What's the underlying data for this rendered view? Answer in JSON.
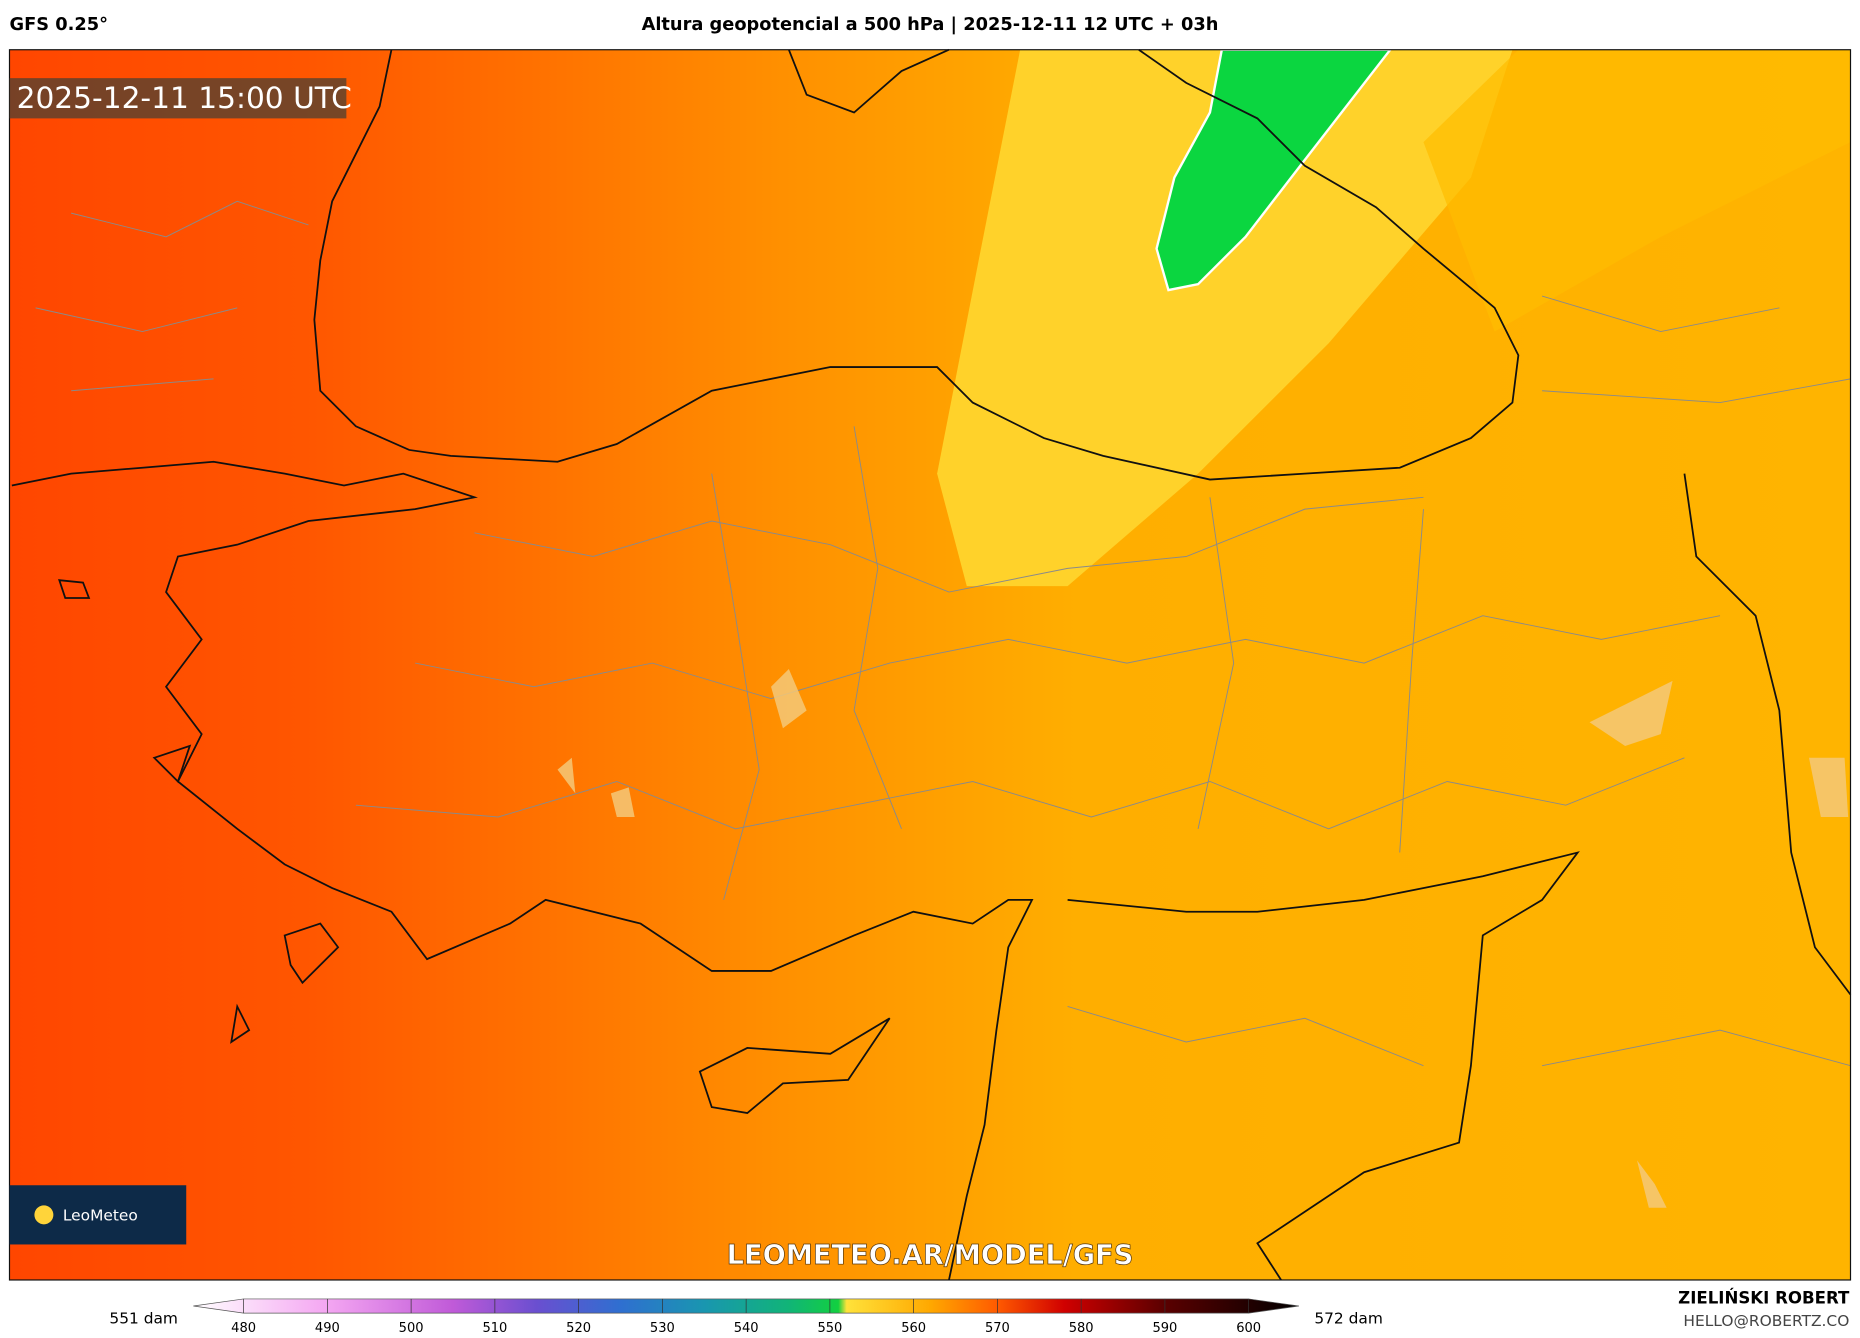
{
  "header": {
    "model": "GFS 0.25°",
    "title": "Altura geopotencial a 500 hPa | 2025-12-11 12 UTC + 03h"
  },
  "map": {
    "timestamp": "2025-12-11 15:00 UTC",
    "logo": "LeoMeteo",
    "watermark": "LEOMETEO.AR/MODEL/GFS"
  },
  "colorbar": {
    "min_label": "551 dam",
    "max_label": "572 dam",
    "range": [
      474,
      606
    ],
    "ticks": [
      480,
      490,
      500,
      510,
      520,
      530,
      540,
      550,
      560,
      570,
      580,
      590,
      600
    ],
    "stops": [
      {
        "value": 474,
        "color": "#ffffff"
      },
      {
        "value": 490,
        "color": "#f4a6f2"
      },
      {
        "value": 505,
        "color": "#c05ad8"
      },
      {
        "value": 515,
        "color": "#6a4fd0"
      },
      {
        "value": 525,
        "color": "#2f6fd0"
      },
      {
        "value": 535,
        "color": "#1996b0"
      },
      {
        "value": 545,
        "color": "#11b478"
      },
      {
        "value": 551,
        "color": "#12d040"
      },
      {
        "value": 552,
        "color": "#ffe23a"
      },
      {
        "value": 562,
        "color": "#ffa800"
      },
      {
        "value": 570,
        "color": "#ff5a00"
      },
      {
        "value": 578,
        "color": "#d00000"
      },
      {
        "value": 590,
        "color": "#5a0000"
      },
      {
        "value": 606,
        "color": "#000000"
      }
    ]
  },
  "footer": {
    "author": "ZIELIŃSKI ROBERT",
    "email": "HELLO@ROBERTZ.CO"
  }
}
